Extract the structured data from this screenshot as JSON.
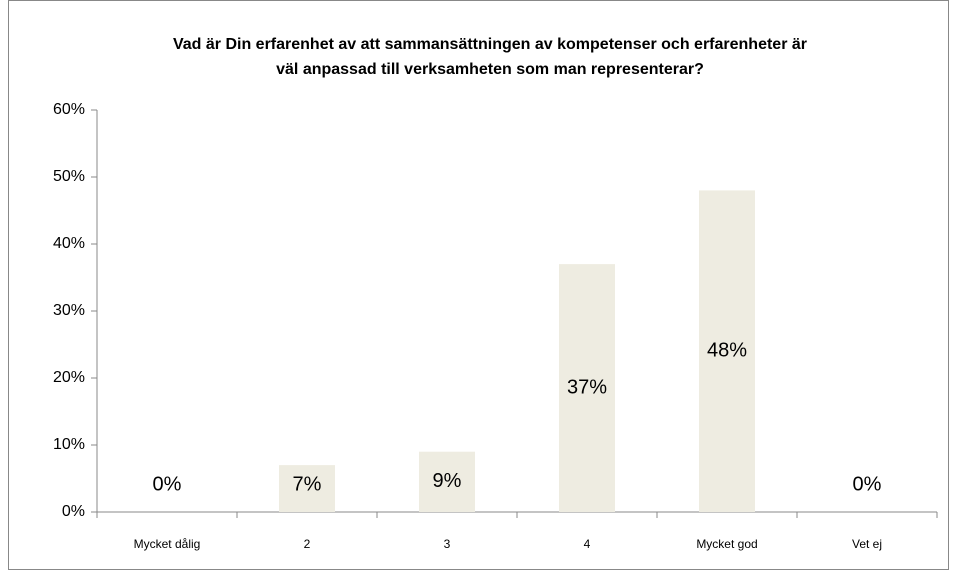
{
  "chart_data": {
    "type": "bar",
    "title": [
      "Vad är Din erfarenhet av att sammansättningen av kompetenser och erfarenheter är",
      "väl anpassad till verksamheten som man representerar?"
    ],
    "categories": [
      "Mycket dålig",
      "2",
      "3",
      "4",
      "Mycket god",
      "Vet ej"
    ],
    "values": [
      0,
      7,
      9,
      37,
      48,
      0
    ],
    "value_labels": [
      "0%",
      "7%",
      "9%",
      "37%",
      "48%",
      "0%"
    ],
    "color": "#eeece1",
    "ylim": [
      0,
      60
    ],
    "yticks": [
      {
        "value": 0,
        "label": "0%"
      },
      {
        "value": 10,
        "label": "10%"
      },
      {
        "value": 20,
        "label": "20%"
      },
      {
        "value": 30,
        "label": "30%"
      },
      {
        "value": 40,
        "label": "40%"
      },
      {
        "value": 50,
        "label": "50%"
      },
      {
        "value": 60,
        "label": "60%"
      }
    ],
    "grid": false
  }
}
